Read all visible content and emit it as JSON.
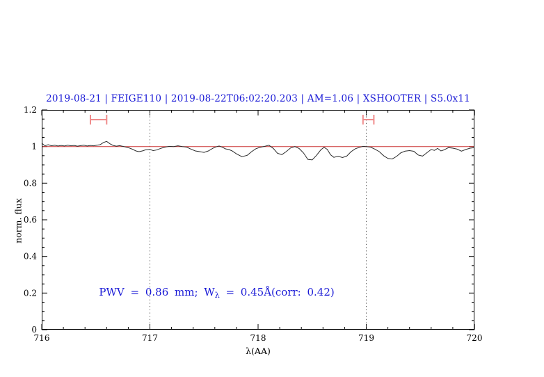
{
  "chart_data": {
    "type": "line",
    "title": "2019-08-21 | FEIGE110 | 2019-08-22T06:02:20.203 | AM=1.06 | XSHOOTER | S5.0x11",
    "xlabel": "λ(AA)",
    "ylabel": "norm. flux",
    "xlim": [
      716,
      720
    ],
    "ylim": [
      0,
      1.2
    ],
    "xticks": [
      716,
      717,
      718,
      719,
      720
    ],
    "xtick_labels": [
      "716",
      "717",
      "718",
      "719",
      "720"
    ],
    "yticks": [
      0,
      0.2,
      0.4,
      0.6,
      0.8,
      1,
      1.2
    ],
    "ytick_labels": [
      "0",
      "0.2",
      "0.4",
      "0.6",
      "0.8",
      "1",
      "1.2"
    ],
    "x_minor_step": 0.2,
    "y_minor_step": 0.05,
    "grid": false,
    "legend": false,
    "colors": {
      "accent_text": "#1a1ad6",
      "spectrum": "#2b2b2b",
      "reference": "#cc3333",
      "marker": "#f08c8c",
      "dotted_line": "#555555",
      "axis": "#000000"
    },
    "reference_line": {
      "y": 1.0
    },
    "vlines": [
      {
        "x": 717,
        "style": "dotted"
      },
      {
        "x": 719,
        "style": "dotted"
      }
    ],
    "range_markers": [
      {
        "x_min": 716.45,
        "x_max": 716.6,
        "y": 1.147
      },
      {
        "x_min": 718.97,
        "x_max": 719.07,
        "y": 1.147
      }
    ],
    "annotation": {
      "prefix": "PWV = 0.86 mm; W",
      "sub": "λ",
      "suffix": " = 0.45Å(corr: 0.42)",
      "text": "PWV = 0.86 mm; Wλ = 0.45Å(corr: 0.42)",
      "x": 716.53,
      "y": 0.205
    },
    "series": [
      {
        "name": "normalized spectrum",
        "x": [
          716.0,
          716.03,
          716.06,
          716.09,
          716.12,
          716.15,
          716.18,
          716.21,
          716.24,
          716.27,
          716.3,
          716.33,
          716.36,
          716.39,
          716.42,
          716.45,
          716.48,
          716.51,
          716.54,
          716.57,
          716.6,
          716.63,
          716.66,
          716.69,
          716.72,
          716.75,
          716.78,
          716.81,
          716.84,
          716.87,
          716.9,
          716.93,
          716.96,
          717.0,
          717.03,
          717.06,
          717.1,
          717.14,
          717.18,
          717.22,
          717.26,
          717.3,
          717.34,
          717.38,
          717.42,
          717.46,
          717.5,
          717.54,
          717.58,
          717.61,
          717.64,
          717.67,
          717.7,
          717.73,
          717.76,
          717.8,
          717.85,
          717.9,
          717.94,
          717.98,
          718.02,
          718.06,
          718.1,
          718.14,
          718.18,
          718.22,
          718.26,
          718.3,
          718.34,
          718.38,
          718.42,
          718.46,
          718.5,
          718.54,
          718.58,
          718.61,
          718.64,
          718.67,
          718.7,
          718.74,
          718.78,
          718.82,
          718.86,
          718.9,
          718.94,
          718.97,
          719.0,
          719.04,
          719.08,
          719.12,
          719.16,
          719.2,
          719.24,
          719.28,
          719.32,
          719.36,
          719.4,
          719.44,
          719.48,
          719.52,
          719.56,
          719.6,
          719.63,
          719.66,
          719.69,
          719.72,
          719.76,
          719.8,
          719.84,
          719.88,
          719.92,
          719.96,
          720.0
        ],
        "y": [
          1.018,
          1.004,
          1.01,
          1.004,
          1.007,
          1.003,
          1.006,
          1.003,
          1.007,
          1.004,
          1.006,
          1.002,
          1.005,
          1.007,
          1.003,
          1.006,
          1.004,
          1.007,
          1.01,
          1.022,
          1.028,
          1.015,
          1.006,
          1.002,
          1.005,
          1.001,
          0.997,
          0.992,
          0.985,
          0.976,
          0.972,
          0.976,
          0.982,
          0.984,
          0.978,
          0.981,
          0.99,
          0.997,
          1.001,
          1.0,
          1.004,
          1.0,
          0.997,
          0.986,
          0.976,
          0.972,
          0.968,
          0.976,
          0.99,
          0.998,
          1.003,
          0.996,
          0.987,
          0.984,
          0.976,
          0.96,
          0.945,
          0.952,
          0.972,
          0.988,
          0.996,
          1.001,
          1.007,
          0.99,
          0.963,
          0.956,
          0.972,
          0.992,
          1.0,
          0.989,
          0.965,
          0.93,
          0.927,
          0.952,
          0.982,
          0.996,
          0.984,
          0.955,
          0.941,
          0.947,
          0.94,
          0.948,
          0.972,
          0.988,
          0.996,
          1.001,
          1.0,
          0.997,
          0.986,
          0.972,
          0.95,
          0.935,
          0.932,
          0.946,
          0.966,
          0.975,
          0.978,
          0.974,
          0.954,
          0.948,
          0.966,
          0.984,
          0.979,
          0.99,
          0.976,
          0.982,
          0.994,
          0.991,
          0.986,
          0.975,
          0.984,
          0.991,
          0.994
        ]
      }
    ]
  }
}
